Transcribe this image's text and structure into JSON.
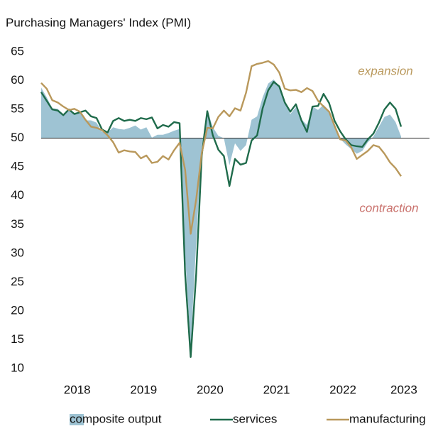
{
  "chart_data": {
    "type": "area-line",
    "title": "Purchasing Managers' Index (PMI)",
    "categories": [
      null,
      null,
      null,
      null,
      null,
      null,
      "2018",
      null,
      null,
      null,
      null,
      null,
      null,
      null,
      null,
      null,
      null,
      null,
      "2019",
      null,
      null,
      null,
      null,
      null,
      null,
      null,
      null,
      null,
      null,
      null,
      "2020",
      null,
      null,
      null,
      null,
      null,
      null,
      null,
      null,
      null,
      null,
      null,
      "2021",
      null,
      null,
      null,
      null,
      null,
      null,
      null,
      null,
      null,
      null,
      null,
      "2022",
      null,
      null,
      null,
      null,
      null,
      null,
      null,
      null,
      null,
      null,
      "2023"
    ],
    "baseline": 50,
    "series": [
      {
        "name": "composite output",
        "kind": "area",
        "color": "#9ec3d3",
        "values": [
          58.8,
          57.1,
          55.2,
          55.1,
          54.1,
          54.9,
          54.3,
          54.5,
          53.1,
          53.1,
          52.7,
          51.1,
          51.0,
          51.9,
          51.6,
          51.5,
          51.8,
          52.2,
          51.5,
          51.9,
          50.1,
          50.6,
          50.6,
          50.9,
          51.3,
          51.6,
          29.7,
          13.6,
          31.9,
          48.5,
          54.9,
          51.9,
          50.4,
          50.0,
          45.3,
          49.1,
          47.8,
          48.8,
          53.2,
          53.8,
          57.1,
          59.5,
          60.2,
          59.0,
          56.2,
          54.2,
          55.4,
          53.3,
          52.3,
          55.5,
          54.9,
          55.8,
          54.8,
          52.0,
          49.9,
          48.9,
          48.1,
          47.3,
          47.8,
          49.3,
          50.3,
          52.0,
          53.7,
          54.1,
          52.8,
          50.3
        ]
      },
      {
        "name": "services",
        "kind": "line",
        "color": "#1f6b4b",
        "values": [
          58.0,
          56.5,
          55.0,
          54.8,
          54.0,
          55.0,
          54.2,
          54.5,
          54.8,
          53.8,
          53.5,
          51.5,
          51.0,
          53.0,
          53.5,
          53.0,
          53.2,
          53.0,
          53.5,
          53.3,
          53.6,
          51.7,
          52.3,
          52.0,
          52.8,
          52.6,
          26.4,
          12.0,
          26.5,
          47.0,
          54.7,
          50.5,
          48.0,
          46.9,
          41.7,
          46.4,
          45.4,
          45.7,
          49.6,
          50.5,
          55.2,
          58.3,
          59.8,
          59.0,
          56.2,
          54.6,
          55.9,
          53.1,
          51.1,
          55.5,
          55.6,
          57.7,
          56.1,
          53.0,
          51.2,
          49.8,
          48.8,
          48.6,
          48.5,
          49.8,
          50.8,
          52.7,
          55.0,
          56.2,
          55.1,
          52.0
        ]
      },
      {
        "name": "manufacturing",
        "kind": "line",
        "color": "#b9985b",
        "values": [
          59.6,
          58.6,
          56.6,
          56.2,
          55.5,
          54.9,
          55.1,
          54.6,
          53.2,
          52.0,
          51.8,
          51.4,
          50.5,
          49.3,
          47.5,
          47.9,
          47.7,
          47.6,
          46.5,
          47.0,
          45.7,
          45.9,
          46.9,
          46.3,
          47.9,
          49.2,
          44.5,
          33.4,
          39.4,
          47.4,
          51.8,
          51.7,
          53.7,
          54.8,
          53.8,
          55.2,
          54.8,
          57.9,
          62.5,
          62.9,
          63.1,
          63.4,
          62.8,
          61.4,
          58.6,
          58.3,
          58.4,
          58.0,
          58.7,
          58.2,
          56.5,
          55.5,
          54.6,
          52.1,
          49.8,
          49.6,
          48.4,
          46.4,
          47.1,
          47.8,
          48.8,
          48.5,
          47.3,
          45.8,
          44.8,
          43.4
        ]
      }
    ],
    "annotations": [
      {
        "text": "expansion",
        "color": "#b9985b"
      },
      {
        "text": "contraction",
        "color": "#c9716c"
      }
    ],
    "ylim": [
      10,
      65
    ],
    "yticks": [
      10,
      15,
      20,
      25,
      30,
      35,
      40,
      45,
      50,
      55,
      60,
      65
    ],
    "grid": false
  }
}
